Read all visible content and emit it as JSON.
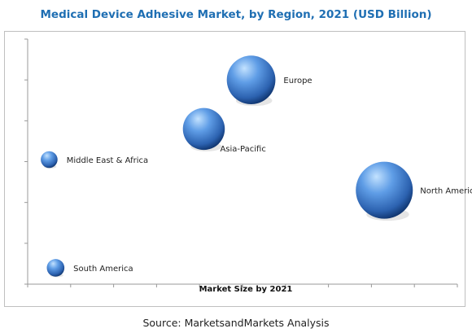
{
  "chart_data": {
    "type": "bubble",
    "title": "Medical Device Adhesive Market, by Region, 2021 (USD Billion)",
    "xlabel": "Market Size by 2021",
    "ylabel": "",
    "source": "Source: MarketsandMarkets Analysis",
    "colors": {
      "bubble_light": "#b8dcff",
      "bubble_mid": "#3d7fd0",
      "bubble_dark": "#0c2f66",
      "axis": "#999999",
      "title": "#1f6fb3"
    },
    "points": [
      {
        "label": "Europe",
        "x": 0.52,
        "y": 5.0,
        "size": 2.9
      },
      {
        "label": "Asia-Pacific",
        "x": 0.41,
        "y": 3.8,
        "size": 2.5
      },
      {
        "label": "Middle East & Africa",
        "x": 0.05,
        "y": 3.05,
        "size": 1.0
      },
      {
        "label": "North America",
        "x": 0.83,
        "y": 2.3,
        "size": 3.4
      },
      {
        "label": "South America",
        "x": 0.065,
        "y": 0.4,
        "size": 1.05
      }
    ],
    "xlim": [
      0,
      1
    ],
    "ylim": [
      0,
      6
    ],
    "grid": false
  }
}
